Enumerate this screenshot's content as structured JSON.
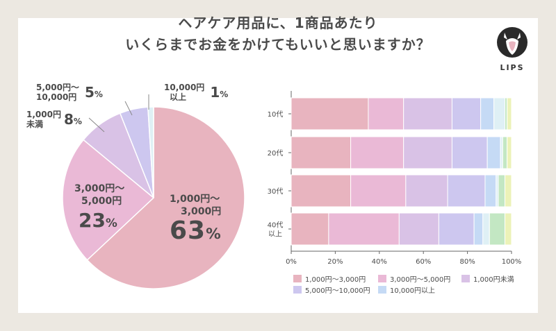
{
  "title": {
    "line1": "ヘアケア用品に、1商品あたり",
    "line2": "いくらまでお金をかけてもいいと思いますか？"
  },
  "brand": "LIPS",
  "colors": {
    "c1": "#e8b4bf",
    "c2": "#eab9d6",
    "c3": "#d9c2e6",
    "c4": "#cdc7ef",
    "c5": "#c5daf5",
    "c6": "#dff0f5",
    "c7": "#c3e7c3",
    "c8": "#ecf2b8"
  },
  "pie": {
    "labels": {
      "s1_l1": "1,000円～",
      "s1_l2": "3,000円",
      "s1_pct": "63",
      "s2_l1": "3,000円～",
      "s2_l2": "5,000円",
      "s2_pct": "23",
      "s3_l1": "1,000円",
      "s3_l2": "未満",
      "s3_pct": "8",
      "s4_l1": "5,000円～",
      "s4_l2": "10,000円",
      "s4_pct": "5",
      "s5_l1": "10,000円",
      "s5_l2": "以上",
      "s5_pct": "1",
      "pct_sign": "%"
    }
  },
  "chart_data": [
    {
      "type": "pie",
      "title": "ヘアケア用品に、1商品あたりいくらまでお金をかけてもいいと思いますか？",
      "categories": [
        "1,000円～3,000円",
        "3,000円～5,000円",
        "1,000円未満",
        "5,000円～10,000円",
        "10,000円以上"
      ],
      "values": [
        63,
        23,
        8,
        5,
        1
      ],
      "unit": "%"
    },
    {
      "type": "bar",
      "orientation": "horizontal",
      "stacked": true,
      "categories": [
        "10代",
        "20代",
        "30代",
        "40代以上"
      ],
      "category_lines": [
        [
          "10代"
        ],
        [
          "20代"
        ],
        [
          "30代"
        ],
        [
          "40代",
          "以上"
        ]
      ],
      "xlim": [
        0,
        100
      ],
      "xticks": [
        "0%",
        "20%",
        "40%",
        "60%",
        "80%",
        "100%"
      ],
      "series": [
        {
          "name": "1,000円～3,000円",
          "values": [
            35,
            27,
            27,
            17
          ]
        },
        {
          "name": "3,000円～5,000円",
          "values": [
            16,
            24,
            25,
            32
          ]
        },
        {
          "name": "1,000円未満",
          "values": [
            22,
            22,
            19,
            18
          ]
        },
        {
          "name": "5,000円～10,000円",
          "values": [
            13,
            16,
            17,
            16
          ]
        },
        {
          "name": "10,000円以上",
          "values": [
            6,
            6,
            5,
            4
          ]
        },
        {
          "name": "",
          "values": [
            5,
            1,
            1,
            3
          ]
        },
        {
          "name": "",
          "values": [
            1,
            2,
            3,
            7
          ]
        },
        {
          "name": "",
          "values": [
            2,
            2,
            3,
            3
          ]
        }
      ],
      "legend": [
        "1,000円～3,000円",
        "3,000円～5,000円",
        "1,000円未満",
        "5,000円～10,000円",
        "10,000円以上"
      ]
    }
  ]
}
